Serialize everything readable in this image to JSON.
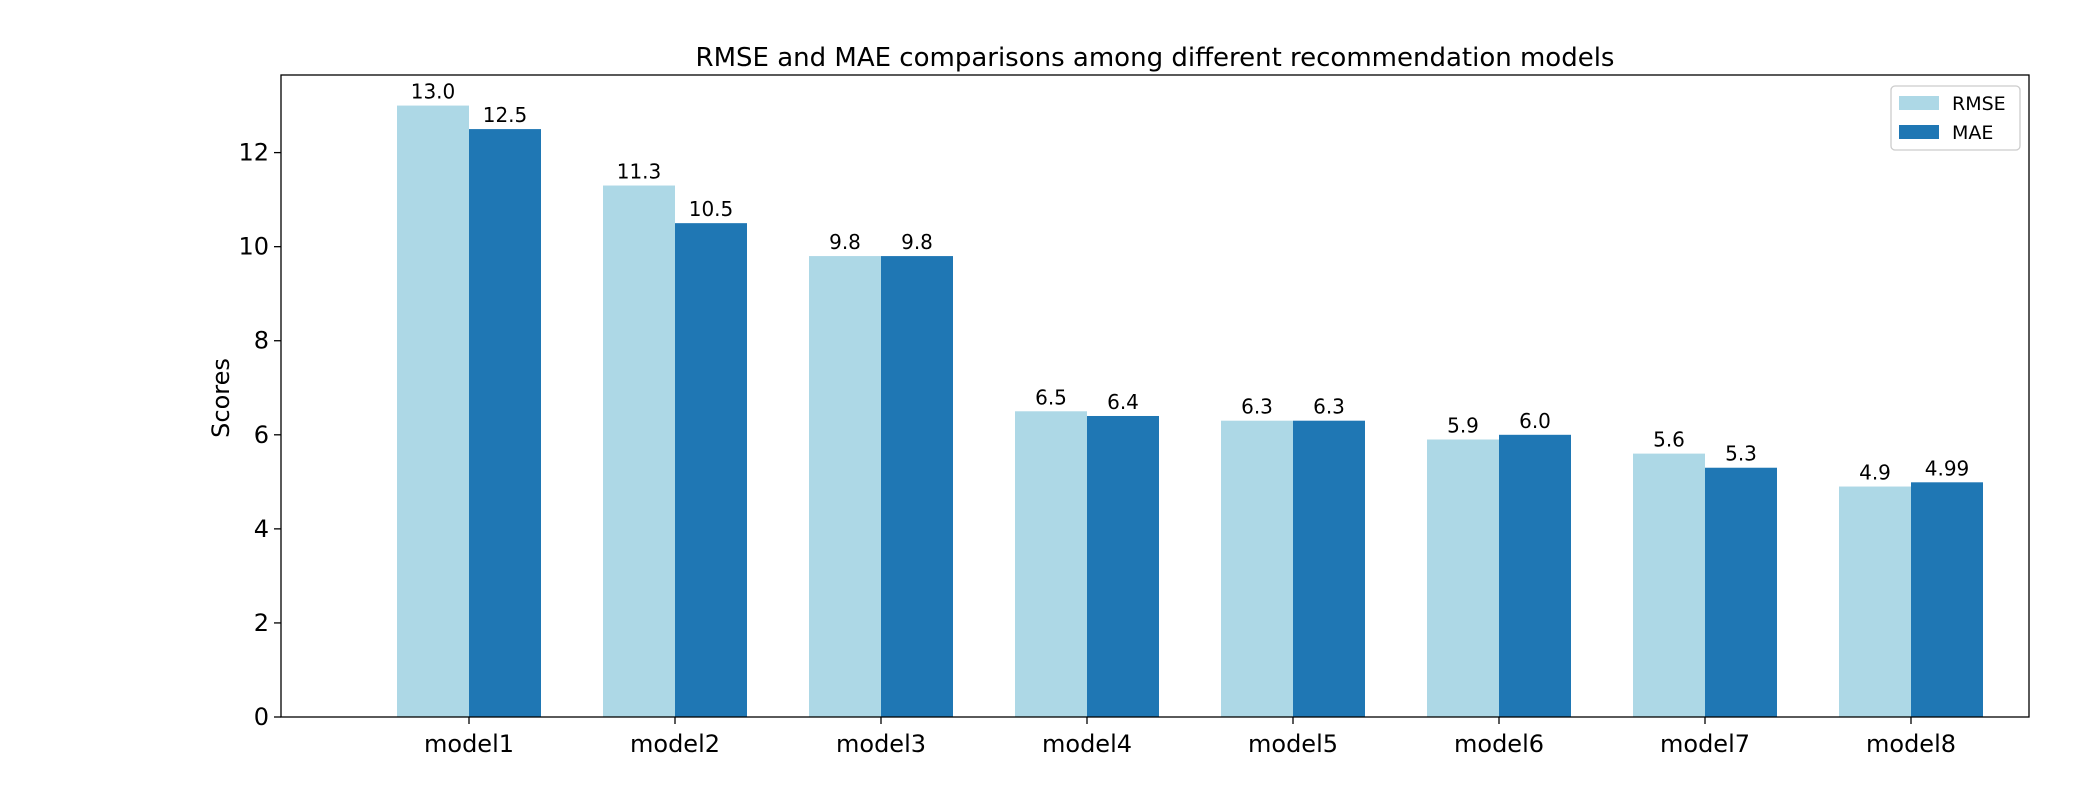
{
  "chart_data": {
    "type": "bar",
    "title": "RMSE and MAE comparisons among different recommendation models",
    "xlabel": "",
    "ylabel": "Scores",
    "categories": [
      "model1",
      "model2",
      "model3",
      "model4",
      "model5",
      "model6",
      "model7",
      "model8"
    ],
    "series": [
      {
        "name": "RMSE",
        "color": "#add8e6",
        "values": [
          13.0,
          11.3,
          9.8,
          6.5,
          6.3,
          5.9,
          5.6,
          4.9
        ],
        "labels": [
          "13.0",
          "11.3",
          "9.8",
          "6.5",
          "6.3",
          "5.9",
          "5.6",
          "4.9"
        ]
      },
      {
        "name": "MAE",
        "color": "#1f77b4",
        "values": [
          12.5,
          10.5,
          9.8,
          6.4,
          6.3,
          6.0,
          5.3,
          4.99
        ],
        "labels": [
          "12.5",
          "10.5",
          "9.8",
          "6.4",
          "6.3",
          "6.0",
          "5.3",
          "4.99"
        ]
      }
    ],
    "ylim": [
      0,
      13.65
    ],
    "yticks": [
      0,
      2,
      4,
      6,
      8,
      10,
      12
    ],
    "grid": false,
    "legend_position": "top-right"
  }
}
